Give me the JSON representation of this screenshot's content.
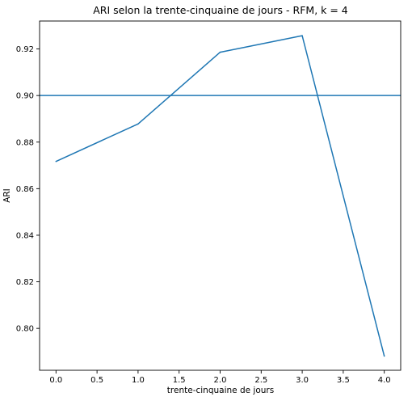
{
  "chart_data": {
    "type": "line",
    "title": "ARI selon la trente-cinquaine de jours - RFM, k = 4",
    "xlabel": "trente-cinquaine de jours",
    "ylabel": "ARI",
    "xlim": [
      -0.2,
      4.2
    ],
    "ylim": [
      0.782,
      0.932
    ],
    "xticks": [
      0.0,
      0.5,
      1.0,
      1.5,
      2.0,
      2.5,
      3.0,
      3.5,
      4.0
    ],
    "xtick_labels": [
      "0.0",
      "0.5",
      "1.0",
      "1.5",
      "2.0",
      "2.5",
      "3.0",
      "3.5",
      "4.0"
    ],
    "yticks": [
      0.8,
      0.82,
      0.84,
      0.86,
      0.88,
      0.9,
      0.92
    ],
    "ytick_labels": [
      "0.80",
      "0.82",
      "0.84",
      "0.86",
      "0.88",
      "0.90",
      "0.92"
    ],
    "grid": false,
    "series": [
      {
        "color": "#1f77b4",
        "x": [
          0,
          1,
          2,
          3,
          4
        ],
        "y": [
          0.8717,
          0.8878,
          0.9186,
          0.9257,
          0.7881
        ]
      }
    ],
    "reference_lines": [
      {
        "orientation": "horizontal",
        "y": 0.9,
        "color": "#1f77b4"
      }
    ]
  }
}
